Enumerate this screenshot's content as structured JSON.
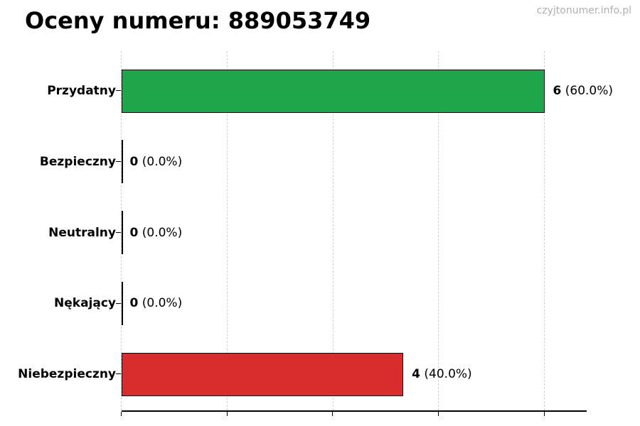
{
  "watermark": "czyjtonumer.info.pl",
  "colors": {
    "bar_positive": "#1fa64b",
    "bar_negative": "#d92c2c",
    "bar_border": "#000000",
    "axis": "#000000",
    "grid": "#cfcfcf",
    "watermark": "#b0b0b0",
    "background": "#ffffff"
  },
  "chart_data": {
    "type": "bar",
    "orientation": "horizontal",
    "title": "Oceny numeru: 889053749",
    "categories": [
      "Przydatny",
      "Bezpieczny",
      "Neutralny",
      "Nękający",
      "Niebezpieczny"
    ],
    "values": [
      6,
      0,
      0,
      0,
      4
    ],
    "percent_labels": [
      "(60.0%)",
      "(0.0%)",
      "(0.0%)",
      "(0.0%)",
      "(40.0%)"
    ],
    "bar_colors": [
      "#1fa64b",
      null,
      null,
      null,
      "#d92c2c"
    ],
    "xlabel": "",
    "ylabel": "",
    "xlim": [
      0,
      6.6
    ],
    "x_ticks": [
      0,
      1.5,
      3,
      4.5,
      6
    ],
    "x_tick_labels_visible": false,
    "grid": {
      "vertical": true,
      "style": "dashed"
    },
    "legend_position": "none"
  }
}
